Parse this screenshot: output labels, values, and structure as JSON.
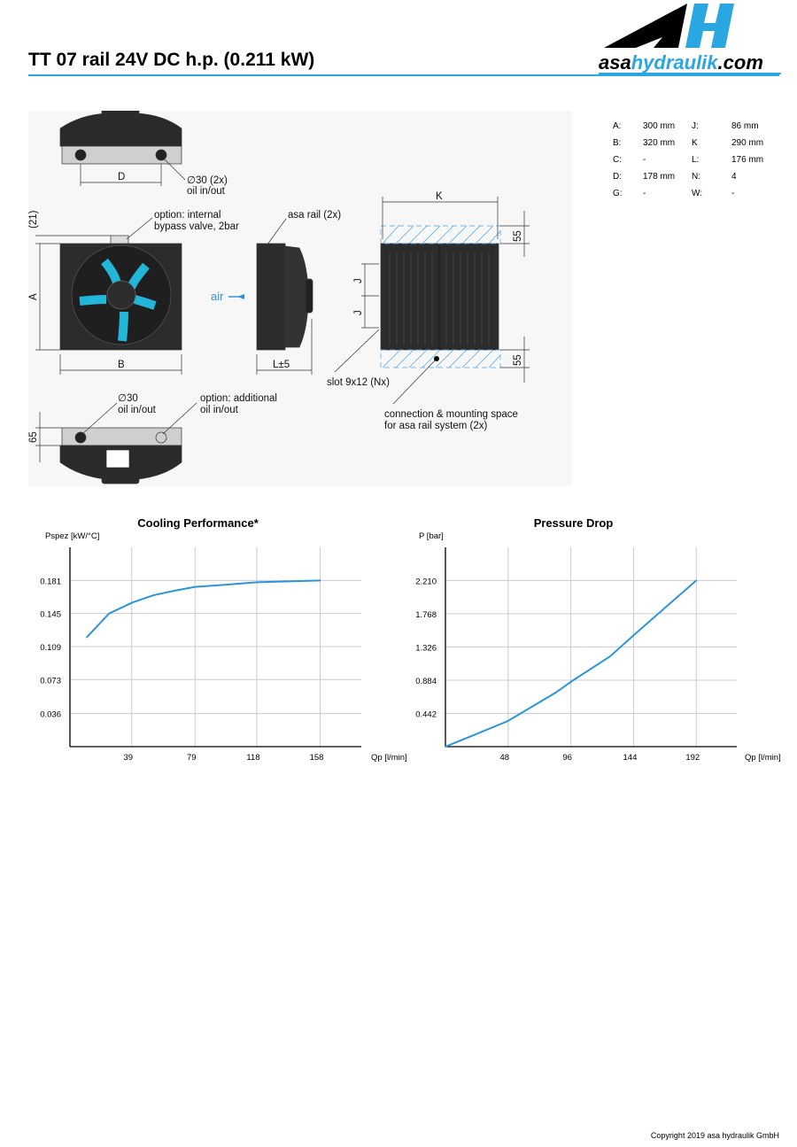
{
  "header": {
    "title": "TT 07 rail 24V DC h.p. (0.211 kW)",
    "logo_text_a": "asa",
    "logo_text_b": "hydraulik",
    "logo_text_c": ".com",
    "brand_color": "#2aa6e0"
  },
  "specs": [
    {
      "k1": "A:",
      "v1": "300 mm",
      "k2": "J:",
      "v2": "86 mm"
    },
    {
      "k1": "B:",
      "v1": "320 mm",
      "k2": "K",
      "v2": "290 mm"
    },
    {
      "k1": "C:",
      "v1": "-",
      "k2": "L:",
      "v2": "176 mm"
    },
    {
      "k1": "D:",
      "v1": "178 mm",
      "k2": "N:",
      "v2": "4"
    },
    {
      "k1": "G:",
      "v1": "-",
      "k2": "W:",
      "v2": "-"
    }
  ],
  "drawing": {
    "dim_d": "D",
    "port_top_1": "∅30 (2x)",
    "port_top_2": "oil in/out",
    "dim_21": "(21)",
    "dim_a": "A",
    "dim_b": "B",
    "bypass_1": "option: internal",
    "bypass_2": "bypass valve, 2bar",
    "air": "air",
    "rail": "asa rail (2x)",
    "dim_l": "L±5",
    "dim_k": "K",
    "dim_55": "55",
    "dim_j": "J",
    "slot": "slot 9x12 (Nx)",
    "conn_1": "connection & mounting space",
    "conn_2": "for asa rail system (2x)",
    "port_bot_1": "∅30",
    "port_bot_2": "oil in/out",
    "add_1": "option: additional",
    "add_2": "oil in/out",
    "dim_65": "65"
  },
  "chart_data": [
    {
      "type": "line",
      "title": "Cooling Performance*",
      "ylabel": "Pspez [kW/°C]",
      "xlabel": "Qp [l/min]",
      "xticks": [
        "39",
        "79",
        "118",
        "158"
      ],
      "xtick_values": [
        39,
        79,
        118,
        158
      ],
      "yticks": [
        "0.036",
        "0.073",
        "0.109",
        "0.145",
        "0.181"
      ],
      "ytick_values": [
        0.036,
        0.073,
        0.109,
        0.145,
        0.181
      ],
      "xlim": [
        0,
        184
      ],
      "ylim": [
        0,
        0.217
      ],
      "grid": true,
      "color": "#2b95dc",
      "x": [
        10.6,
        24.7,
        39.5,
        53,
        66.5,
        79,
        95.8,
        118,
        158
      ],
      "y": [
        0.119,
        0.145,
        0.157,
        0.165,
        0.17,
        0.174,
        0.176,
        0.179,
        0.181
      ]
    },
    {
      "type": "line",
      "title": "Pressure Drop",
      "ylabel": "P [bar]",
      "xlabel": "Qp [l/min]",
      "xticks": [
        "48",
        "96",
        "144",
        "192"
      ],
      "xtick_values": [
        48,
        96,
        144,
        192
      ],
      "yticks": [
        "0.442",
        "0.884",
        "1.326",
        "1.768",
        "2.210"
      ],
      "ytick_values": [
        0.442,
        0.884,
        1.326,
        1.768,
        2.21
      ],
      "xlim": [
        0,
        223
      ],
      "ylim": [
        0,
        2.65
      ],
      "grid": true,
      "color": "#2b95dc",
      "x": [
        0,
        18.4,
        47.7,
        84.5,
        96.7,
        126,
        144.6,
        192
      ],
      "y": [
        0,
        0.13,
        0.34,
        0.72,
        0.87,
        1.2,
        1.49,
        2.21
      ]
    }
  ],
  "footer": {
    "copyright": "Copyright 2019 asa hydraulik GmbH"
  }
}
